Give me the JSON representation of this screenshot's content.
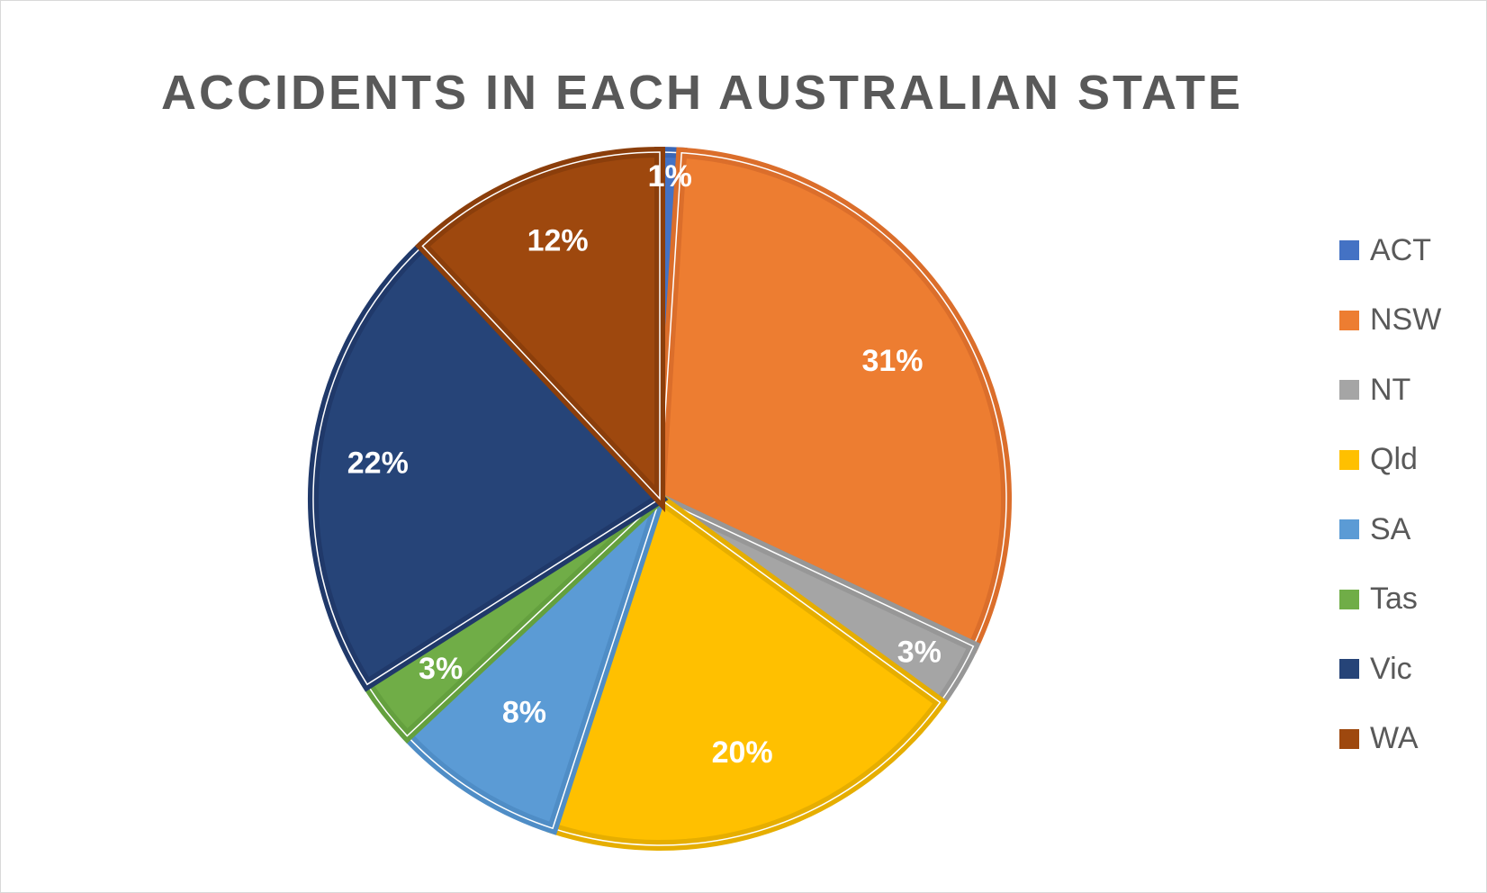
{
  "chart_data": {
    "type": "pie",
    "title": "ACCIDENTS IN EACH AUSTRALIAN STATE",
    "categories": [
      "ACT",
      "NSW",
      "NT",
      "Qld",
      "SA",
      "Tas",
      "Vic",
      "WA"
    ],
    "values": [
      1,
      31,
      3,
      20,
      8,
      3,
      22,
      12
    ],
    "labels": [
      "1%",
      "31%",
      "3%",
      "20%",
      "8%",
      "3%",
      "22%",
      "12%"
    ],
    "colors": [
      "#4472C4",
      "#ED7D31",
      "#A5A5A5",
      "#FFC000",
      "#5B9BD5",
      "#70AD47",
      "#264478",
      "#9E480E"
    ],
    "border_colors": [
      "#3A66B5",
      "#DB6E2B",
      "#979797",
      "#E6AE00",
      "#4F8DC6",
      "#64A03E",
      "#20396A",
      "#8B3E0B"
    ],
    "legend_position": "right",
    "start_angle_deg": 0,
    "direction": "clockwise"
  }
}
